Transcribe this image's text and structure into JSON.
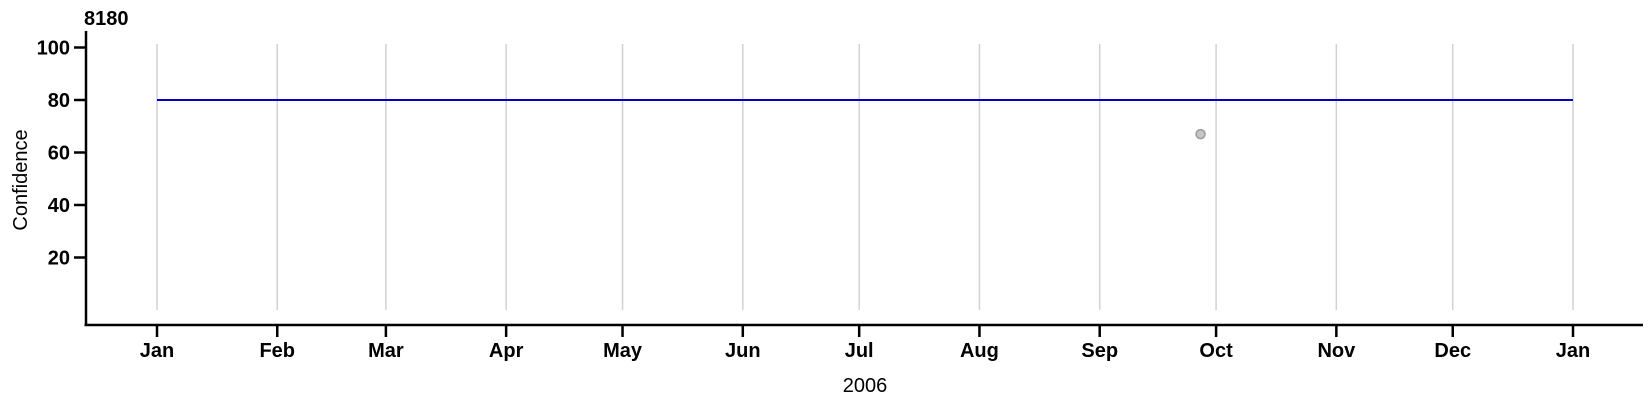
{
  "chart_data": {
    "type": "line",
    "title": "8180",
    "xlabel": "2006",
    "ylabel": "Confidence",
    "x_axis": {
      "tick_labels": [
        "Jan",
        "Feb",
        "Mar",
        "Apr",
        "May",
        "Jun",
        "Jul",
        "Aug",
        "Sep",
        "Oct",
        "Nov",
        "Dec",
        "Jan"
      ],
      "range": [
        "2006-01-01",
        "2007-01-01"
      ],
      "label": "2006"
    },
    "y_axis": {
      "tick_labels": [
        20,
        40,
        60,
        80,
        100
      ],
      "range": [
        0,
        107
      ],
      "label": "Confidence"
    },
    "grid": {
      "show": true,
      "orientation": "vertical",
      "at": "month-starts",
      "color": "#d2d2d2"
    },
    "legend": {
      "show": false
    },
    "colors": {
      "line": "#0000cd",
      "marker_fill": "#c6c6c6",
      "marker_stroke": "#9a9a9a",
      "axis": "#000000"
    },
    "series": [
      {
        "name": "confidence-threshold-line",
        "kind": "line",
        "color": "#0000cd",
        "stroke_width": 2,
        "points": [
          {
            "date": "2006-01-01",
            "day_of_year": 0,
            "value": 80
          },
          {
            "date": "2007-01-01",
            "day_of_year": 365,
            "value": 80
          }
        ]
      },
      {
        "name": "observation-marker",
        "kind": "scatter",
        "marker": "circle",
        "fill": "#c6c6c6",
        "stroke": "#9a9a9a",
        "radius_px": 4.5,
        "points": [
          {
            "date": "2006-09-26",
            "day_of_year": 269,
            "value": 67
          }
        ]
      }
    ]
  }
}
